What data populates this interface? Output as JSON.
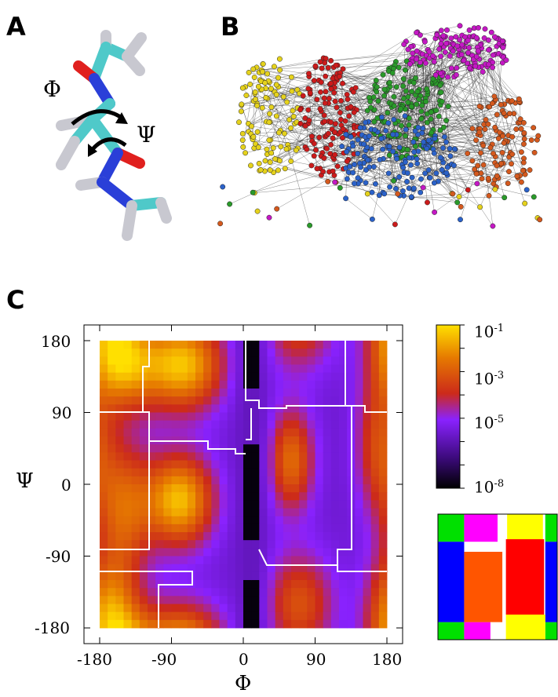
{
  "panels": {
    "a": {
      "letter": "A",
      "phi": "Φ",
      "psi": "Ψ"
    },
    "b": {
      "letter": "B"
    },
    "c": {
      "letter": "C"
    }
  },
  "colors": {
    "network_groups": [
      "#e5d21c",
      "#cc1b1b",
      "#2a9a2a",
      "#2b62c9",
      "#c418c4",
      "#d4591e"
    ],
    "atoms": {
      "carbon": "#4fc9c9",
      "oxygen": "#e0201e",
      "nitrogen": "#2a3fd8",
      "hydrogen": "#c8c8d0"
    },
    "colorbar_stops": [
      "#000000",
      "#3a0a78",
      "#8a22ff",
      "#cc2a1a",
      "#e67a00",
      "#ffe000"
    ],
    "partition_states": [
      "#00e000",
      "#0000ff",
      "#ff00ff",
      "#ff5500",
      "#ff0000",
      "#ffff00"
    ]
  },
  "chart_data": {
    "type": "heatmap",
    "xlabel": "Φ",
    "ylabel": "Ψ",
    "xlim": [
      -180,
      180
    ],
    "ylim": [
      -180,
      180
    ],
    "x_ticks": [
      "-180",
      "-90",
      "0",
      "90",
      "180"
    ],
    "y_ticks": [
      "180",
      "90",
      "0",
      "-90",
      "-180"
    ],
    "colorbar": {
      "scale": "log",
      "tick_labels": [
        {
          "base": "10",
          "exp": "-1"
        },
        {
          "base": "10",
          "exp": "-3"
        },
        {
          "base": "10",
          "exp": "-5"
        },
        {
          "base": "10",
          "exp": "-8"
        }
      ],
      "range_log10": [
        -8,
        -1
      ]
    }
  }
}
